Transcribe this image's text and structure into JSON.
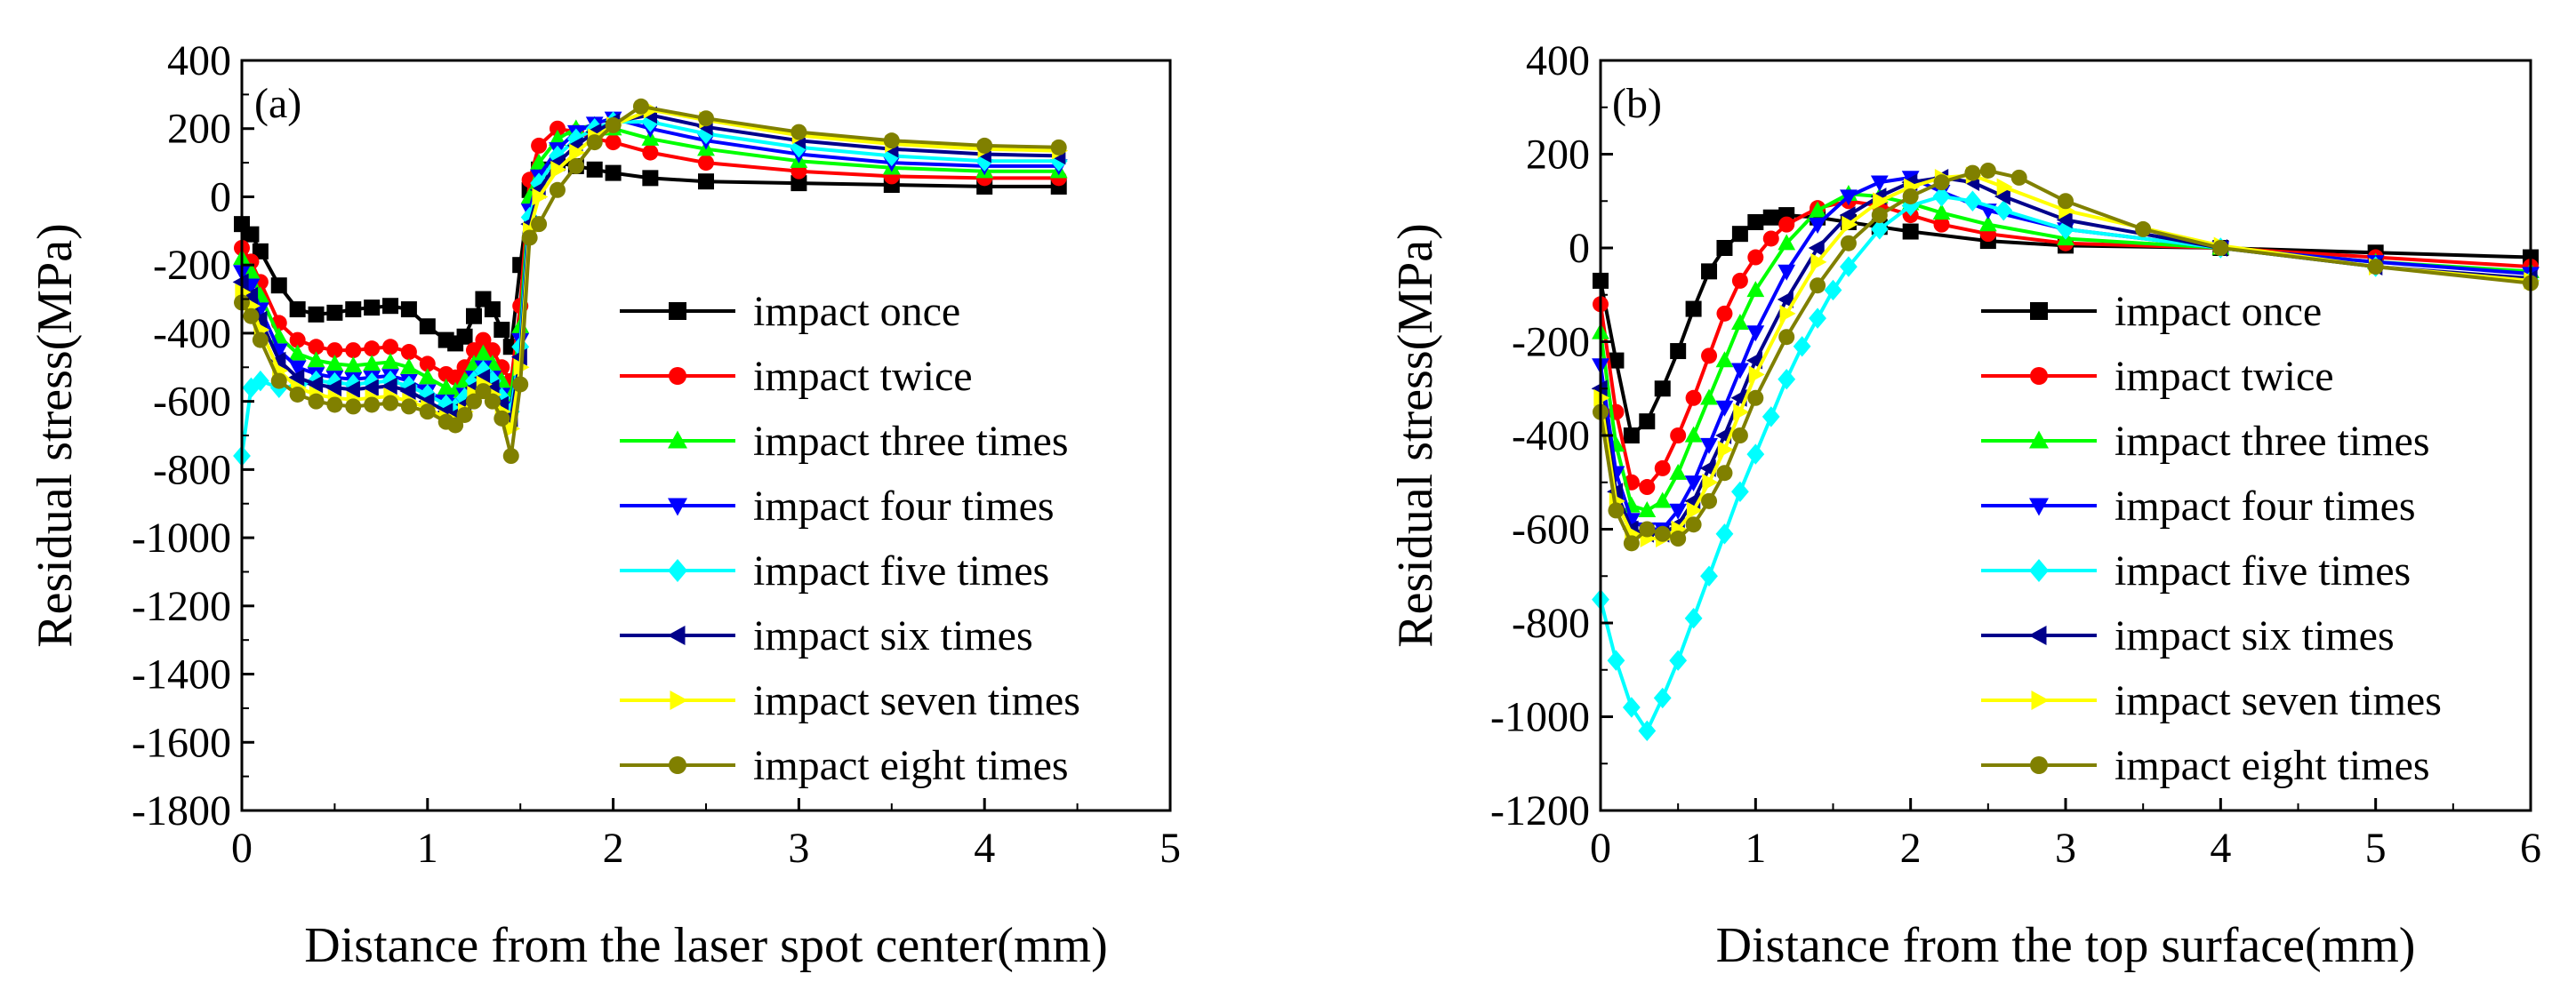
{
  "chart_data": [
    {
      "type": "line",
      "panel_label": "(a)",
      "xlabel": "Distance from the laser spot center(mm)",
      "ylabel": "Residual stress(MPa)",
      "xlim": [
        0,
        5
      ],
      "ylim": [
        -1800,
        400
      ],
      "xticks": [
        0,
        1,
        2,
        3,
        4,
        5
      ],
      "yticks": [
        -1800,
        -1600,
        -1400,
        -1200,
        -1000,
        -800,
        -600,
        -400,
        -200,
        0,
        200,
        400
      ],
      "legend_position": "right",
      "series": [
        {
          "name": "impact once",
          "color": "#000000",
          "marker": "square",
          "x": [
            0,
            0.05,
            0.1,
            0.2,
            0.3,
            0.4,
            0.5,
            0.6,
            0.7,
            0.8,
            0.9,
            1.0,
            1.1,
            1.15,
            1.2,
            1.25,
            1.3,
            1.35,
            1.4,
            1.45,
            1.5,
            1.55,
            1.6,
            1.7,
            1.8,
            1.9,
            2.0,
            2.2,
            2.5,
            3.0,
            3.5,
            4.0,
            4.4
          ],
          "y": [
            -80,
            -110,
            -160,
            -260,
            -330,
            -345,
            -340,
            -330,
            -325,
            -320,
            -330,
            -380,
            -420,
            -430,
            -410,
            -350,
            -300,
            -330,
            -390,
            -440,
            -200,
            20,
            80,
            100,
            90,
            80,
            70,
            55,
            45,
            40,
            35,
            30,
            30
          ]
        },
        {
          "name": "impact twice",
          "color": "#ff0000",
          "marker": "circle",
          "x": [
            0,
            0.05,
            0.1,
            0.2,
            0.3,
            0.4,
            0.5,
            0.6,
            0.7,
            0.8,
            0.9,
            1.0,
            1.1,
            1.15,
            1.2,
            1.25,
            1.3,
            1.35,
            1.4,
            1.45,
            1.5,
            1.55,
            1.6,
            1.7,
            1.8,
            1.9,
            2.0,
            2.2,
            2.5,
            3.0,
            3.5,
            4.0,
            4.4
          ],
          "y": [
            -150,
            -190,
            -250,
            -370,
            -420,
            -440,
            -450,
            -450,
            -445,
            -440,
            -455,
            -490,
            -520,
            -530,
            -500,
            -450,
            -420,
            -450,
            -500,
            -540,
            -320,
            50,
            150,
            200,
            190,
            170,
            160,
            130,
            100,
            75,
            60,
            55,
            55
          ]
        },
        {
          "name": "impact three times",
          "color": "#00ff00",
          "marker": "triangle-up",
          "x": [
            0,
            0.05,
            0.1,
            0.2,
            0.3,
            0.4,
            0.5,
            0.6,
            0.7,
            0.8,
            0.9,
            1.0,
            1.1,
            1.15,
            1.2,
            1.25,
            1.3,
            1.35,
            1.4,
            1.45,
            1.5,
            1.55,
            1.6,
            1.7,
            1.8,
            1.9,
            2.0,
            2.2,
            2.5,
            3.0,
            3.5,
            4.0,
            4.4
          ],
          "y": [
            -180,
            -220,
            -290,
            -410,
            -460,
            -480,
            -490,
            -495,
            -490,
            -485,
            -500,
            -530,
            -560,
            -570,
            -540,
            -490,
            -460,
            -490,
            -540,
            -580,
            -380,
            0,
            100,
            170,
            200,
            210,
            200,
            170,
            140,
            105,
            85,
            75,
            75
          ]
        },
        {
          "name": "impact four times",
          "color": "#0000ff",
          "marker": "triangle-down",
          "x": [
            0,
            0.05,
            0.1,
            0.2,
            0.3,
            0.4,
            0.5,
            0.6,
            0.7,
            0.8,
            0.9,
            1.0,
            1.1,
            1.15,
            1.2,
            1.25,
            1.3,
            1.35,
            1.4,
            1.45,
            1.5,
            1.55,
            1.6,
            1.7,
            1.8,
            1.9,
            2.0,
            2.2,
            2.5,
            3.0,
            3.5,
            4.0,
            4.4
          ],
          "y": [
            -220,
            -260,
            -330,
            -450,
            -500,
            -520,
            -530,
            -535,
            -530,
            -525,
            -540,
            -570,
            -600,
            -610,
            -580,
            -530,
            -500,
            -530,
            -580,
            -620,
            -420,
            -40,
            60,
            140,
            190,
            215,
            230,
            200,
            165,
            125,
            100,
            90,
            90
          ]
        },
        {
          "name": "impact five times",
          "color": "#00ffff",
          "marker": "diamond",
          "x": [
            0,
            0.05,
            0.1,
            0.2,
            0.3,
            0.4,
            0.5,
            0.6,
            0.7,
            0.8,
            0.9,
            1.0,
            1.1,
            1.15,
            1.2,
            1.25,
            1.3,
            1.35,
            1.4,
            1.45,
            1.5,
            1.55,
            1.6,
            1.7,
            1.8,
            1.9,
            2.0,
            2.2,
            2.5,
            3.0,
            3.5,
            4.0,
            4.4
          ],
          "y": [
            -760,
            -560,
            -540,
            -560,
            -555,
            -540,
            -545,
            -550,
            -545,
            -540,
            -555,
            -580,
            -610,
            -620,
            -590,
            -540,
            -510,
            -540,
            -590,
            -630,
            -440,
            -60,
            40,
            120,
            170,
            200,
            220,
            220,
            185,
            145,
            120,
            105,
            105
          ]
        },
        {
          "name": "impact six times",
          "color": "#00008b",
          "marker": "triangle-left",
          "x": [
            0,
            0.05,
            0.1,
            0.2,
            0.3,
            0.4,
            0.5,
            0.6,
            0.7,
            0.8,
            0.9,
            1.0,
            1.1,
            1.15,
            1.2,
            1.25,
            1.3,
            1.35,
            1.4,
            1.45,
            1.5,
            1.55,
            1.6,
            1.7,
            1.8,
            1.9,
            2.0,
            2.2,
            2.5,
            3.0,
            3.5,
            4.0,
            4.4
          ],
          "y": [
            -250,
            -290,
            -360,
            -480,
            -530,
            -550,
            -560,
            -565,
            -560,
            -555,
            -570,
            -600,
            -630,
            -640,
            -610,
            -560,
            -530,
            -560,
            -610,
            -650,
            -470,
            -80,
            20,
            100,
            150,
            190,
            220,
            240,
            205,
            165,
            140,
            125,
            120
          ]
        },
        {
          "name": "impact seven times",
          "color": "#ffff00",
          "marker": "triangle-right",
          "x": [
            0,
            0.05,
            0.1,
            0.2,
            0.3,
            0.4,
            0.5,
            0.6,
            0.7,
            0.8,
            0.9,
            1.0,
            1.1,
            1.15,
            1.2,
            1.25,
            1.3,
            1.35,
            1.4,
            1.45,
            1.5,
            1.55,
            1.6,
            1.7,
            1.8,
            1.9,
            2.0,
            2.2,
            2.5,
            3.0,
            3.5,
            4.0,
            4.4
          ],
          "y": [
            -280,
            -320,
            -390,
            -510,
            -560,
            -580,
            -590,
            -595,
            -590,
            -585,
            -600,
            -620,
            -650,
            -660,
            -630,
            -580,
            -550,
            -580,
            -630,
            -680,
            -500,
            -100,
            0,
            80,
            130,
            175,
            210,
            255,
            225,
            180,
            155,
            140,
            135
          ]
        },
        {
          "name": "impact eight times",
          "color": "#808000",
          "marker": "circle",
          "x": [
            0,
            0.05,
            0.1,
            0.2,
            0.3,
            0.4,
            0.5,
            0.6,
            0.7,
            0.8,
            0.9,
            1.0,
            1.1,
            1.15,
            1.2,
            1.25,
            1.3,
            1.35,
            1.4,
            1.45,
            1.5,
            1.55,
            1.6,
            1.7,
            1.8,
            1.9,
            2.0,
            2.15,
            2.5,
            3.0,
            3.5,
            4.0,
            4.4
          ],
          "y": [
            -310,
            -350,
            -420,
            -540,
            -580,
            -600,
            -610,
            -615,
            -610,
            -605,
            -615,
            -630,
            -660,
            -670,
            -640,
            -600,
            -570,
            -600,
            -650,
            -760,
            -550,
            -120,
            -80,
            20,
            90,
            160,
            210,
            265,
            230,
            190,
            165,
            150,
            145
          ]
        }
      ]
    },
    {
      "type": "line",
      "panel_label": "(b)",
      "xlabel": "Distance from the top surface(mm)",
      "ylabel": "Residual stress(MPa)",
      "xlim": [
        0,
        6
      ],
      "ylim": [
        -1200,
        400
      ],
      "xticks": [
        0,
        1,
        2,
        3,
        4,
        5,
        6
      ],
      "yticks": [
        -1200,
        -1000,
        -800,
        -600,
        -400,
        -200,
        0,
        200,
        400
      ],
      "legend_position": "right",
      "series": [
        {
          "name": "impact once",
          "color": "#000000",
          "marker": "square",
          "x": [
            0,
            0.1,
            0.2,
            0.3,
            0.4,
            0.5,
            0.6,
            0.7,
            0.8,
            0.9,
            1.0,
            1.1,
            1.2,
            1.4,
            1.6,
            1.8,
            2.0,
            2.5,
            3.0,
            4.0,
            5.0,
            6.0
          ],
          "y": [
            -70,
            -240,
            -400,
            -370,
            -300,
            -220,
            -130,
            -50,
            0,
            30,
            55,
            65,
            70,
            65,
            55,
            45,
            35,
            15,
            5,
            0,
            -10,
            -20
          ]
        },
        {
          "name": "impact twice",
          "color": "#ff0000",
          "marker": "circle",
          "x": [
            0,
            0.1,
            0.2,
            0.3,
            0.4,
            0.5,
            0.6,
            0.7,
            0.8,
            0.9,
            1.0,
            1.1,
            1.2,
            1.4,
            1.6,
            1.8,
            2.0,
            2.2,
            2.5,
            3.0,
            4.0,
            5.0,
            6.0
          ],
          "y": [
            -120,
            -350,
            -500,
            -510,
            -470,
            -400,
            -320,
            -230,
            -140,
            -70,
            -20,
            20,
            50,
            85,
            100,
            90,
            70,
            50,
            30,
            10,
            0,
            -20,
            -40
          ]
        },
        {
          "name": "impact three times",
          "color": "#00ff00",
          "marker": "triangle-up",
          "x": [
            0,
            0.1,
            0.2,
            0.3,
            0.4,
            0.5,
            0.6,
            0.7,
            0.8,
            0.9,
            1.0,
            1.2,
            1.4,
            1.6,
            1.8,
            2.0,
            2.2,
            2.5,
            3.0,
            4.0,
            5.0,
            6.0
          ],
          "y": [
            -180,
            -420,
            -550,
            -560,
            -540,
            -480,
            -400,
            -320,
            -240,
            -160,
            -90,
            10,
            80,
            115,
            110,
            95,
            75,
            50,
            20,
            0,
            -30,
            -50
          ]
        },
        {
          "name": "impact four times",
          "color": "#0000ff",
          "marker": "triangle-down",
          "x": [
            0,
            0.1,
            0.2,
            0.3,
            0.4,
            0.5,
            0.6,
            0.7,
            0.8,
            0.9,
            1.0,
            1.2,
            1.4,
            1.6,
            1.8,
            2.0,
            2.2,
            2.5,
            3.0,
            4.0,
            5.0,
            6.0
          ],
          "y": [
            -250,
            -480,
            -580,
            -600,
            -600,
            -560,
            -500,
            -420,
            -340,
            -260,
            -180,
            -50,
            50,
            110,
            140,
            150,
            120,
            80,
            40,
            0,
            -30,
            -55
          ]
        },
        {
          "name": "impact five times",
          "color": "#00ffff",
          "marker": "diamond",
          "x": [
            0,
            0.1,
            0.2,
            0.3,
            0.4,
            0.5,
            0.6,
            0.7,
            0.8,
            0.9,
            1.0,
            1.1,
            1.2,
            1.3,
            1.4,
            1.5,
            1.6,
            1.8,
            2.0,
            2.2,
            2.4,
            2.6,
            3.0,
            4.0,
            5.0,
            6.0
          ],
          "y": [
            -750,
            -880,
            -980,
            -1030,
            -960,
            -880,
            -790,
            -700,
            -610,
            -520,
            -440,
            -360,
            -280,
            -210,
            -150,
            -90,
            -40,
            40,
            90,
            110,
            100,
            80,
            40,
            0,
            -40,
            -70
          ]
        },
        {
          "name": "impact six times",
          "color": "#00008b",
          "marker": "triangle-left",
          "x": [
            0,
            0.1,
            0.2,
            0.3,
            0.4,
            0.5,
            0.6,
            0.7,
            0.8,
            0.9,
            1.0,
            1.2,
            1.4,
            1.6,
            1.8,
            2.0,
            2.2,
            2.4,
            2.6,
            3.0,
            4.0,
            5.0,
            6.0
          ],
          "y": [
            -300,
            -520,
            -600,
            -610,
            -610,
            -590,
            -540,
            -470,
            -400,
            -320,
            -240,
            -110,
            0,
            70,
            110,
            140,
            150,
            140,
            110,
            60,
            0,
            -40,
            -65
          ]
        },
        {
          "name": "impact seven times",
          "color": "#ffff00",
          "marker": "triangle-right",
          "x": [
            0,
            0.1,
            0.2,
            0.3,
            0.4,
            0.5,
            0.6,
            0.7,
            0.8,
            0.9,
            1.0,
            1.2,
            1.4,
            1.6,
            1.8,
            2.0,
            2.2,
            2.4,
            2.6,
            3.0,
            4.0,
            5.0,
            6.0
          ],
          "y": [
            -320,
            -540,
            -610,
            -620,
            -620,
            -600,
            -560,
            -500,
            -430,
            -350,
            -270,
            -140,
            -30,
            50,
            100,
            130,
            150,
            155,
            130,
            80,
            5,
            -40,
            -70
          ]
        },
        {
          "name": "impact eight times",
          "color": "#808000",
          "marker": "circle",
          "x": [
            0,
            0.1,
            0.2,
            0.3,
            0.4,
            0.5,
            0.6,
            0.7,
            0.8,
            0.9,
            1.0,
            1.2,
            1.4,
            1.6,
            1.8,
            2.0,
            2.2,
            2.4,
            2.5,
            2.7,
            3.0,
            3.5,
            4.0,
            5.0,
            6.0
          ],
          "y": [
            -350,
            -560,
            -630,
            -600,
            -610,
            -620,
            -590,
            -540,
            -480,
            -400,
            -320,
            -190,
            -80,
            10,
            70,
            110,
            140,
            160,
            165,
            150,
            100,
            40,
            0,
            -40,
            -75
          ]
        }
      ]
    }
  ]
}
